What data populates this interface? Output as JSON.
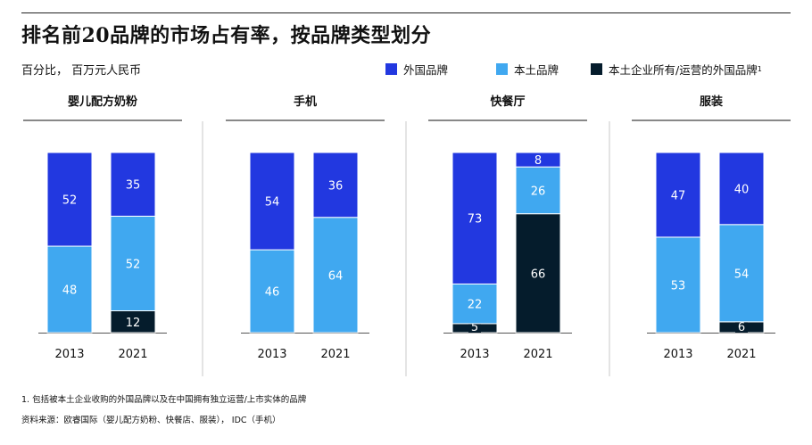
{
  "title": "排名前20品牌的市场占有率，按品牌类型划分",
  "subtitle": "百分比， 百万元人民币",
  "legend": [
    {
      "label": "外国品牌",
      "color": "#2238e0"
    },
    {
      "label": "本土品牌",
      "color": "#40a8f0"
    },
    {
      "label": "本土企业所有/运营的外国品牌",
      "sup": "1",
      "color": "#051c2c"
    }
  ],
  "chart_data": [
    {
      "type": "bar",
      "stacked": true,
      "title": "婴儿配方奶粉",
      "categories": [
        "2013",
        "2021"
      ],
      "series": [
        {
          "name": "本土企业所有/运营的外国品牌",
          "values": [
            0,
            12
          ]
        },
        {
          "name": "本土品牌",
          "values": [
            48,
            52
          ]
        },
        {
          "name": "外国品牌",
          "values": [
            52,
            35
          ]
        }
      ]
    },
    {
      "type": "bar",
      "stacked": true,
      "title": "手机",
      "categories": [
        "2013",
        "2021"
      ],
      "series": [
        {
          "name": "本土企业所有/运营的外国品牌",
          "values": [
            0,
            0
          ]
        },
        {
          "name": "本土品牌",
          "values": [
            46,
            64
          ]
        },
        {
          "name": "外国品牌",
          "values": [
            54,
            36
          ]
        }
      ]
    },
    {
      "type": "bar",
      "stacked": true,
      "title": "快餐厅",
      "categories": [
        "2013",
        "2021"
      ],
      "series": [
        {
          "name": "本土企业所有/运营的外国品牌",
          "values": [
            5,
            66
          ]
        },
        {
          "name": "本土品牌",
          "values": [
            22,
            26
          ]
        },
        {
          "name": "外国品牌",
          "values": [
            73,
            8
          ]
        }
      ]
    },
    {
      "type": "bar",
      "stacked": true,
      "title": "服装",
      "categories": [
        "2013",
        "2021"
      ],
      "series": [
        {
          "name": "本土企业所有/运营的外国品牌",
          "values": [
            0,
            6
          ]
        },
        {
          "name": "本土品牌",
          "values": [
            53,
            54
          ]
        },
        {
          "name": "外国品牌",
          "values": [
            47,
            40
          ]
        }
      ]
    }
  ],
  "footnote": "1. 包括被本土企业收购的外国品牌以及在中国拥有独立运营/上市实体的品牌",
  "source": "资料来源：欧睿国际（婴儿配方奶粉、快餐店、服装）， IDC（手机）"
}
